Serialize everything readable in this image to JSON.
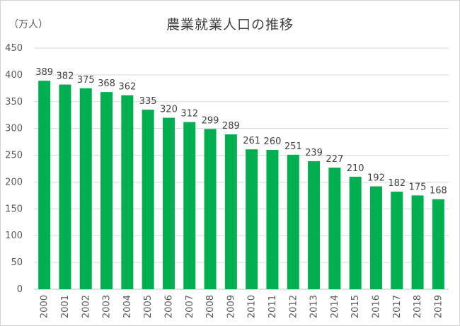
{
  "chart_data": {
    "type": "bar",
    "title": "農業就業人口の推移",
    "ylabel": "（万人）",
    "xlabel": "",
    "ylim": [
      0,
      450
    ],
    "ytick_step": 50,
    "grid": true,
    "legend": "none",
    "bar_color": "#00b050",
    "categories": [
      "2000",
      "2001",
      "2002",
      "2003",
      "2004",
      "2005",
      "2006",
      "2007",
      "2008",
      "2009",
      "2010",
      "2011",
      "2012",
      "2013",
      "2014",
      "2015",
      "2016",
      "2017",
      "2018",
      "2019"
    ],
    "values": [
      389,
      382,
      375,
      368,
      362,
      335,
      320,
      312,
      299,
      289,
      261,
      260,
      251,
      239,
      227,
      210,
      192,
      182,
      175,
      168
    ]
  }
}
